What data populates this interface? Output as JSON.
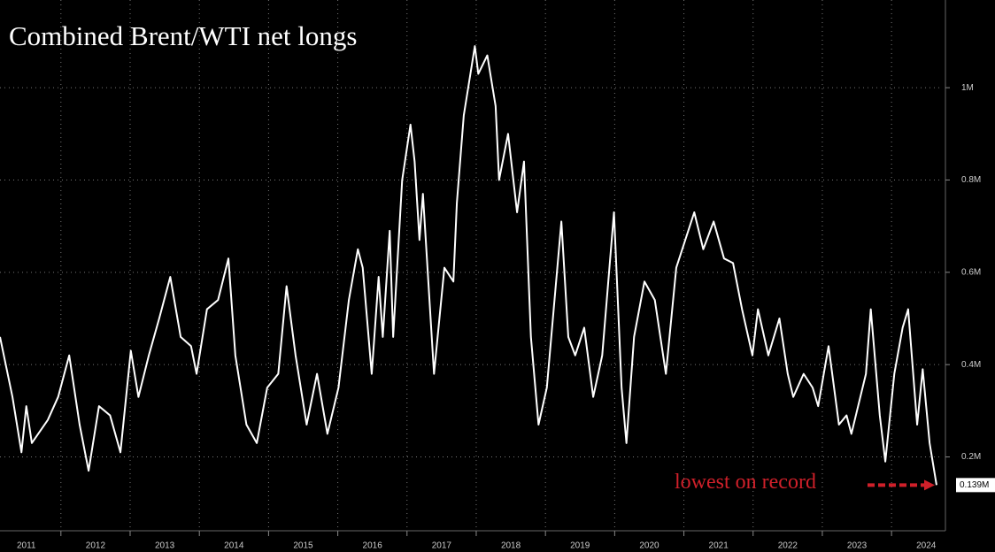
{
  "chart_data": {
    "type": "line",
    "title": "Combined Brent/WTI net longs",
    "x": [
      2011.12,
      2011.3,
      2011.43,
      2011.5,
      2011.58,
      2011.81,
      2011.96,
      2012.12,
      2012.27,
      2012.4,
      2012.55,
      2012.71,
      2012.86,
      2013.01,
      2013.12,
      2013.27,
      2013.42,
      2013.58,
      2013.73,
      2013.88,
      2013.96,
      2014.11,
      2014.27,
      2014.42,
      2014.52,
      2014.68,
      2014.83,
      2014.98,
      2015.14,
      2015.26,
      2015.39,
      2015.55,
      2015.7,
      2015.85,
      2016.01,
      2016.16,
      2016.29,
      2016.36,
      2016.49,
      2016.59,
      2016.65,
      2016.75,
      2016.8,
      2016.93,
      2017.05,
      2017.11,
      2017.18,
      2017.23,
      2017.39,
      2017.54,
      2017.67,
      2017.72,
      2017.82,
      2017.98,
      2018.03,
      2018.16,
      2018.28,
      2018.33,
      2018.46,
      2018.59,
      2018.69,
      2018.79,
      2018.9,
      2019.02,
      2019.23,
      2019.33,
      2019.43,
      2019.56,
      2019.69,
      2019.82,
      2019.99,
      2020.1,
      2020.17,
      2020.28,
      2020.43,
      2020.58,
      2020.74,
      2020.89,
      2021.15,
      2021.28,
      2021.43,
      2021.58,
      2021.71,
      2021.84,
      2021.99,
      2022.07,
      2022.22,
      2022.38,
      2022.5,
      2022.58,
      2022.73,
      2022.86,
      2022.94,
      2023.09,
      2023.24,
      2023.35,
      2023.42,
      2023.63,
      2023.7,
      2023.83,
      2023.91,
      2024.04,
      2024.16,
      2024.24,
      2024.37,
      2024.45,
      2024.55,
      2024.65
    ],
    "series": [
      {
        "color": "#ffffff",
        "values": [
          0.46,
          0.33,
          0.21,
          0.31,
          0.23,
          0.28,
          0.33,
          0.42,
          0.27,
          0.17,
          0.31,
          0.29,
          0.21,
          0.43,
          0.33,
          0.42,
          0.5,
          0.59,
          0.46,
          0.44,
          0.38,
          0.52,
          0.54,
          0.63,
          0.42,
          0.27,
          0.23,
          0.35,
          0.38,
          0.57,
          0.42,
          0.27,
          0.38,
          0.25,
          0.35,
          0.54,
          0.65,
          0.61,
          0.38,
          0.59,
          0.46,
          0.69,
          0.46,
          0.8,
          0.92,
          0.84,
          0.67,
          0.77,
          0.38,
          0.61,
          0.58,
          0.75,
          0.94,
          1.09,
          1.03,
          1.07,
          0.96,
          0.8,
          0.9,
          0.73,
          0.84,
          0.46,
          0.27,
          0.35,
          0.71,
          0.46,
          0.42,
          0.48,
          0.33,
          0.42,
          0.73,
          0.35,
          0.23,
          0.46,
          0.58,
          0.54,
          0.38,
          0.61,
          0.73,
          0.65,
          0.71,
          0.63,
          0.62,
          0.52,
          0.42,
          0.52,
          0.42,
          0.5,
          0.38,
          0.33,
          0.38,
          0.35,
          0.31,
          0.44,
          0.27,
          0.29,
          0.25,
          0.38,
          0.52,
          0.29,
          0.19,
          0.38,
          0.48,
          0.52,
          0.27,
          0.39,
          0.23,
          0.139
        ]
      }
    ],
    "xlim": [
      2011.12,
      2024.74
    ],
    "xticks": [
      {
        "value": 2011,
        "label": "2011"
      },
      {
        "value": 2012,
        "label": "2012"
      },
      {
        "value": 2013,
        "label": "2013"
      },
      {
        "value": 2014,
        "label": "2014"
      },
      {
        "value": 2015,
        "label": "2015"
      },
      {
        "value": 2016,
        "label": "2016"
      },
      {
        "value": 2017,
        "label": "2017"
      },
      {
        "value": 2018,
        "label": "2018"
      },
      {
        "value": 2019,
        "label": "2019"
      },
      {
        "value": 2020,
        "label": "2020"
      },
      {
        "value": 2021,
        "label": "2021"
      },
      {
        "value": 2022,
        "label": "2022"
      },
      {
        "value": 2023,
        "label": "2023"
      },
      {
        "value": 2024,
        "label": "2024"
      }
    ],
    "ylim": [
      0.04,
      1.19
    ],
    "yticks": [
      {
        "value": 0.2,
        "label": "0.2M"
      },
      {
        "value": 0.4,
        "label": "0.4M"
      },
      {
        "value": 0.6,
        "label": "0.6M"
      },
      {
        "value": 0.8,
        "label": "0.8M"
      },
      {
        "value": 1,
        "label": "1M"
      }
    ],
    "last_value": {
      "value": 0.139,
      "label": "0.139M"
    },
    "annotation": "lowest on record",
    "grid": true
  }
}
